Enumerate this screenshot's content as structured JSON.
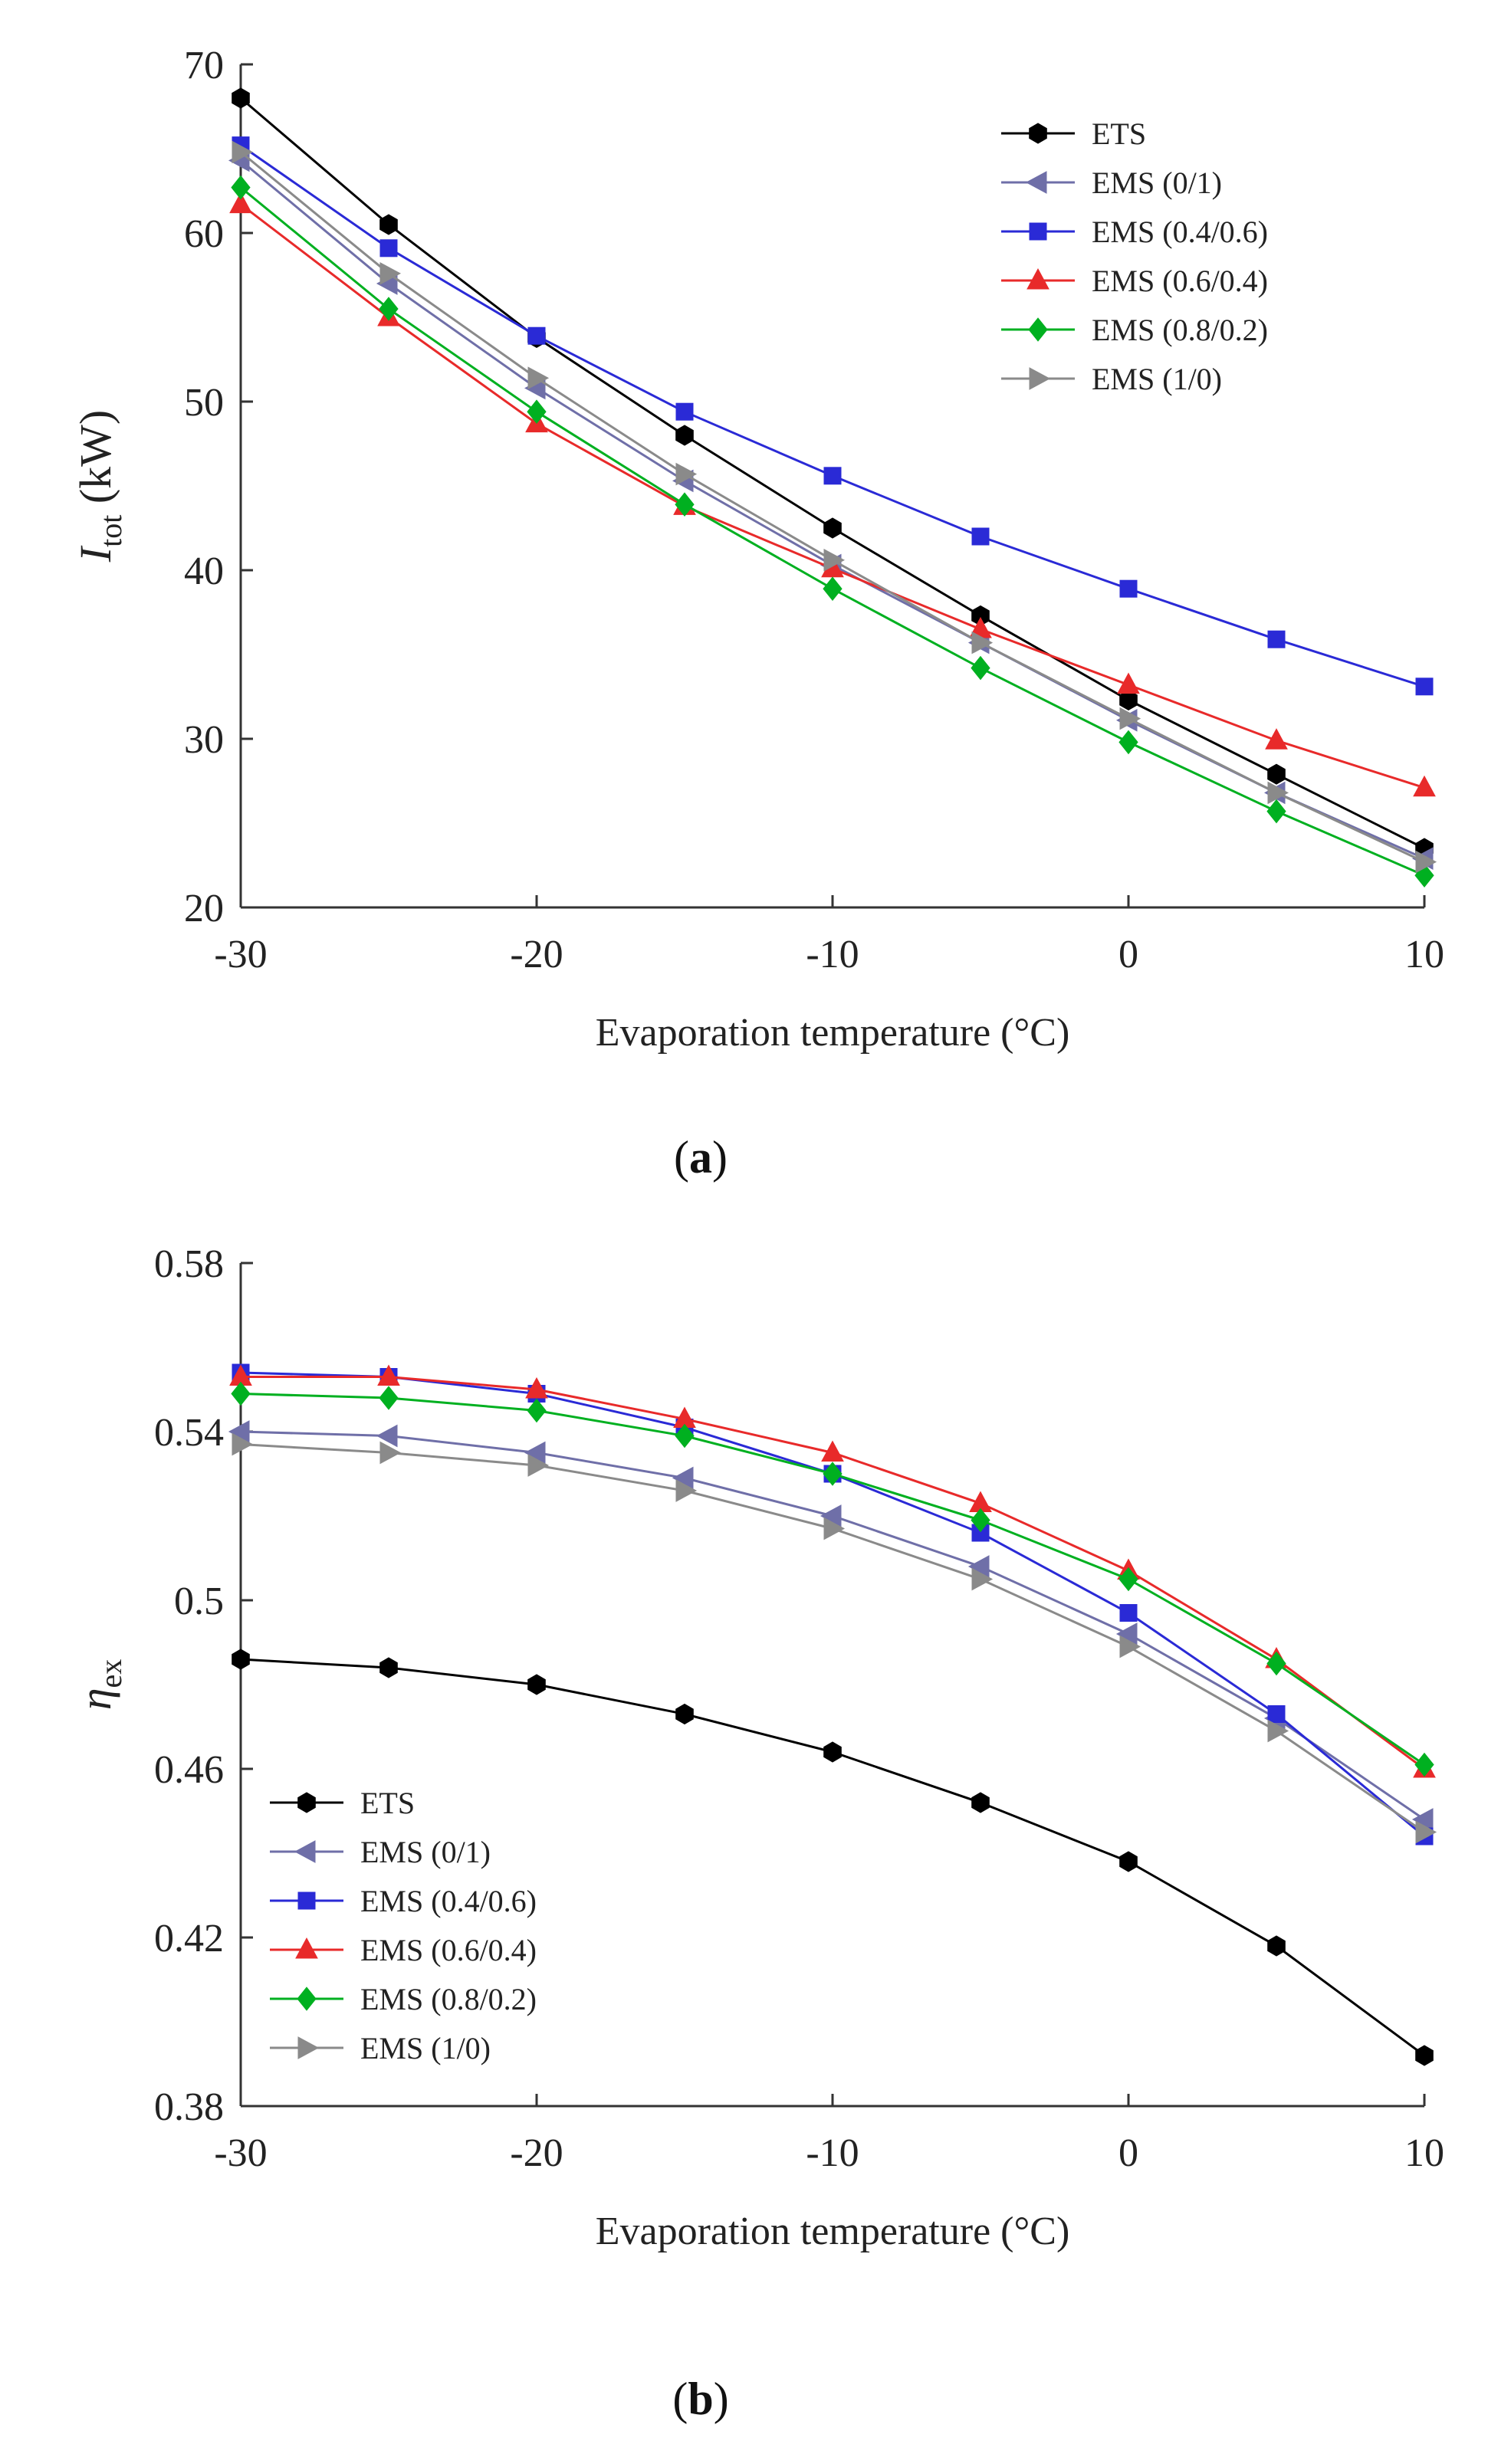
{
  "chart_data": [
    {
      "panel": "(a)",
      "panel_letter": "a",
      "type": "line",
      "xlabel": "Evaporation temperature (°C)",
      "ylabel": {
        "main": "I",
        "sub": "tot",
        "unit": " (kW)"
      },
      "xlim": [
        -30,
        10
      ],
      "ylim": [
        20,
        70
      ],
      "xticks": [
        -30,
        -20,
        -10,
        0,
        10
      ],
      "yticks": [
        20,
        30,
        40,
        50,
        60,
        70
      ],
      "grid": false,
      "legend_position": "top-right",
      "x": [
        -30,
        -25,
        -20,
        -15,
        -10,
        -5,
        0,
        5,
        10
      ],
      "series": [
        {
          "name": "ETS",
          "color": "#000000",
          "marker": "hexagon",
          "values": [
            68.0,
            60.5,
            53.8,
            48.0,
            42.5,
            37.3,
            32.3,
            27.9,
            23.5
          ]
        },
        {
          "name": "EMS (0/1)",
          "color": "#6f6fa8",
          "marker": "triangle-left",
          "values": [
            64.3,
            57.0,
            50.8,
            45.3,
            40.3,
            35.7,
            31.1,
            26.8,
            22.9
          ]
        },
        {
          "name": "EMS (0.4/0.6)",
          "color": "#2a2ad6",
          "marker": "square",
          "values": [
            65.2,
            59.1,
            53.9,
            49.4,
            45.6,
            42.0,
            38.9,
            35.9,
            33.1
          ]
        },
        {
          "name": "EMS (0.6/0.4)",
          "color": "#e82a2a",
          "marker": "triangle-up",
          "values": [
            61.7,
            55.0,
            48.7,
            43.8,
            40.1,
            36.5,
            33.2,
            29.9,
            27.1
          ]
        },
        {
          "name": "EMS (0.8/0.2)",
          "color": "#00b020",
          "marker": "diamond",
          "values": [
            62.7,
            55.5,
            49.4,
            43.9,
            38.9,
            34.2,
            29.8,
            25.7,
            21.9
          ]
        },
        {
          "name": "EMS (1/0)",
          "color": "#8a8a8a",
          "marker": "triangle-right",
          "values": [
            64.8,
            57.6,
            51.4,
            45.7,
            40.6,
            35.7,
            31.2,
            26.8,
            22.7
          ]
        }
      ]
    },
    {
      "panel": "(b)",
      "panel_letter": "b",
      "type": "line",
      "xlabel": "Evaporation temperature (°C)",
      "ylabel": {
        "main": "η",
        "sub": "ex",
        "unit": ""
      },
      "xlim": [
        -30,
        10
      ],
      "ylim": [
        0.38,
        0.58
      ],
      "xticks": [
        -30,
        -20,
        -10,
        0,
        10
      ],
      "yticks": [
        0.38,
        0.42,
        0.46,
        0.5,
        0.54,
        0.58
      ],
      "ytick_labels": [
        "0.38",
        "0.42",
        "0.46",
        "0.5",
        "0.54",
        "0.58"
      ],
      "grid": false,
      "legend_position": "bottom-left",
      "x": [
        -30,
        -25,
        -20,
        -15,
        -10,
        -5,
        0,
        5,
        10
      ],
      "series": [
        {
          "name": "ETS",
          "color": "#000000",
          "marker": "hexagon",
          "values": [
            0.486,
            0.484,
            0.48,
            0.473,
            0.464,
            0.452,
            0.438,
            0.418,
            0.392
          ]
        },
        {
          "name": "EMS (0/1)",
          "color": "#6f6fa8",
          "marker": "triangle-left",
          "values": [
            0.54,
            0.539,
            0.535,
            0.529,
            0.52,
            0.508,
            0.492,
            0.472,
            0.448
          ]
        },
        {
          "name": "EMS (0.4/0.6)",
          "color": "#2a2ad6",
          "marker": "square",
          "values": [
            0.554,
            0.553,
            0.549,
            0.541,
            0.53,
            0.516,
            0.497,
            0.473,
            0.444
          ]
        },
        {
          "name": "EMS (0.6/0.4)",
          "color": "#e82a2a",
          "marker": "triangle-up",
          "values": [
            0.553,
            0.553,
            0.55,
            0.543,
            0.535,
            0.523,
            0.507,
            0.486,
            0.46
          ]
        },
        {
          "name": "EMS (0.8/0.2)",
          "color": "#00b020",
          "marker": "diamond",
          "values": [
            0.549,
            0.548,
            0.545,
            0.539,
            0.53,
            0.519,
            0.505,
            0.485,
            0.461
          ]
        },
        {
          "name": "EMS (1/0)",
          "color": "#8a8a8a",
          "marker": "triangle-right",
          "values": [
            0.537,
            0.535,
            0.532,
            0.526,
            0.517,
            0.505,
            0.489,
            0.469,
            0.445
          ]
        }
      ]
    }
  ]
}
